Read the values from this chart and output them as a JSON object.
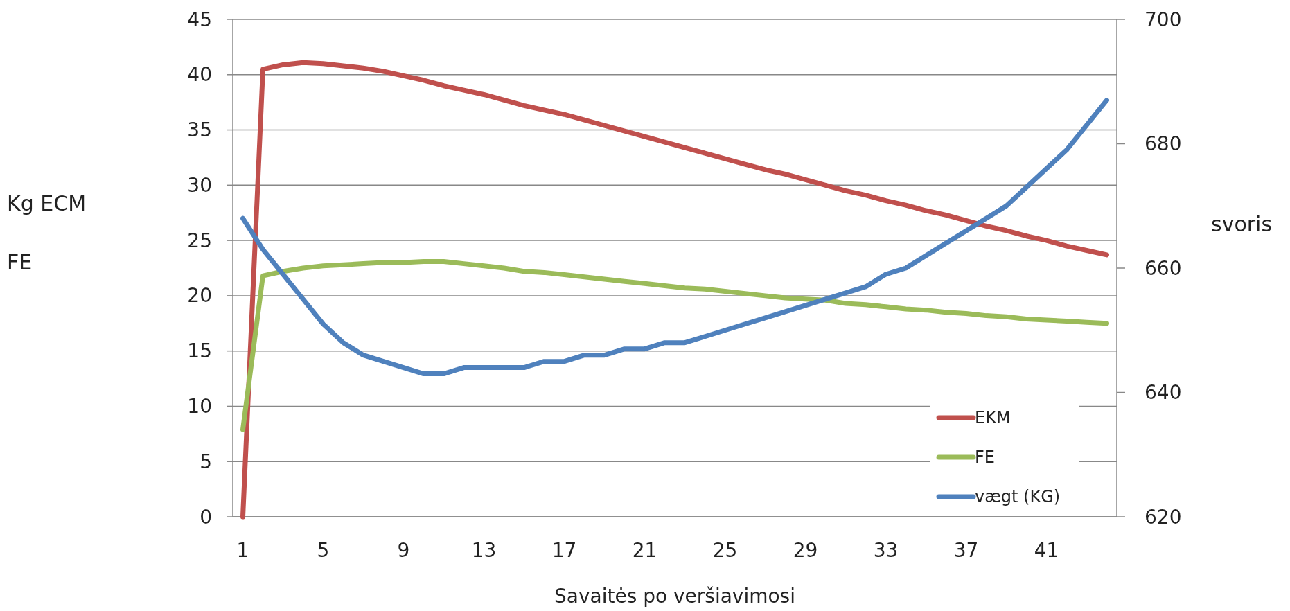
{
  "chart_data": {
    "type": "line",
    "xlabel": "Savaitės po veršiavimosi",
    "ylabel": "Kg ECM\nFE",
    "y2label": "svoris",
    "categories": [
      "1",
      null,
      null,
      null,
      "5",
      null,
      null,
      null,
      "9",
      null,
      null,
      null,
      "13",
      null,
      null,
      null,
      "17",
      null,
      null,
      null,
      "21",
      null,
      null,
      null,
      "25",
      null,
      null,
      null,
      "29",
      null,
      null,
      null,
      "33",
      null,
      null,
      null,
      "37",
      null,
      null,
      null,
      "41",
      null,
      null,
      null
    ],
    "series": [
      {
        "name": "EKM",
        "color": "#c0504d",
        "values": [
          0,
          40.5,
          40.9,
          41.1,
          41.0,
          40.8,
          40.6,
          40.3,
          39.9,
          39.5,
          39.0,
          38.6,
          38.2,
          37.7,
          37.2,
          36.8,
          36.4,
          35.9,
          35.4,
          34.9,
          34.4,
          33.9,
          33.4,
          32.9,
          32.4,
          31.9,
          31.4,
          31.0,
          30.5,
          30.0,
          29.5,
          29.1,
          28.6,
          28.2,
          27.7,
          27.3,
          26.8,
          26.3,
          25.9,
          25.4,
          25.0,
          24.5,
          24.1,
          23.7
        ]
      },
      {
        "name": "FE",
        "color": "#9bbb59",
        "values": [
          7.9,
          21.8,
          22.2,
          22.5,
          22.7,
          22.8,
          22.9,
          23.0,
          23.0,
          23.1,
          23.1,
          22.9,
          22.7,
          22.5,
          22.2,
          22.1,
          21.9,
          21.7,
          21.5,
          21.3,
          21.1,
          20.9,
          20.7,
          20.6,
          20.4,
          20.2,
          20.0,
          19.8,
          19.7,
          19.6,
          19.3,
          19.2,
          19.0,
          18.8,
          18.7,
          18.5,
          18.4,
          18.2,
          18.1,
          17.9,
          17.8,
          17.7,
          17.6,
          17.5
        ]
      },
      {
        "name": "vægt (KG)",
        "color": "#4f81bd",
        "axis": "y2",
        "values": [
          668,
          663,
          659,
          655,
          651,
          648,
          646,
          645,
          644,
          643,
          643,
          644,
          644,
          644,
          644,
          645,
          645,
          646,
          646,
          647,
          647,
          648,
          648,
          649,
          650,
          651,
          652,
          653,
          654,
          655,
          656,
          657,
          659,
          660,
          662,
          664,
          666,
          668,
          670,
          673,
          676,
          679,
          683,
          687
        ]
      }
    ],
    "ylim": [
      0,
      45
    ],
    "yticks": [
      0,
      5,
      10,
      15,
      20,
      25,
      30,
      35,
      40,
      45
    ],
    "y2lim": [
      620,
      700
    ],
    "y2ticks": [
      620,
      640,
      660,
      680,
      700
    ],
    "grid": "y",
    "legend": "bottom right",
    "marker": "none",
    "line_style": "solid"
  }
}
